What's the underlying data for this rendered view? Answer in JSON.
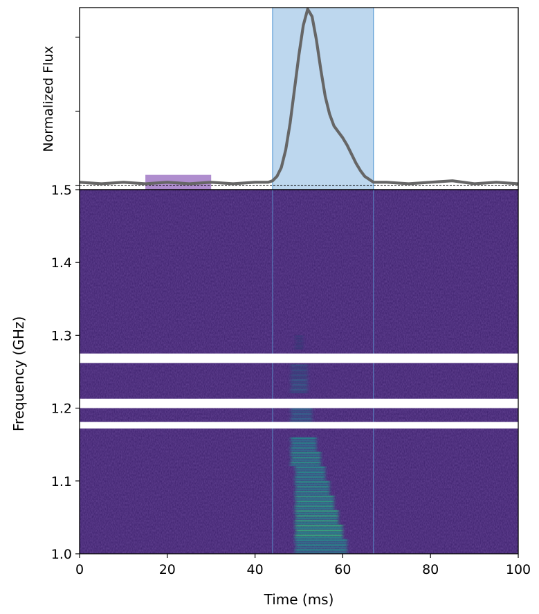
{
  "chart_data": [
    {
      "type": "line",
      "panel": "top",
      "ylabel": "Normalized Flux",
      "xlim": [
        0,
        100
      ],
      "ylim": [
        -0.03,
        1.2
      ],
      "yticks": [
        0,
        0.5,
        1.0
      ],
      "baseline": 0,
      "highlight_region": {
        "x": [
          44,
          67
        ],
        "color": "#5b9bd5"
      },
      "offpulse_region": {
        "x": [
          15,
          30
        ],
        "color": "#9467bd"
      },
      "series": [
        {
          "color": "#666666",
          "x": [
            0,
            5,
            10,
            15,
            20,
            25,
            30,
            35,
            40,
            43,
            44,
            45,
            46,
            47,
            48,
            49,
            50,
            51,
            52,
            53,
            54,
            55,
            56,
            57,
            58,
            59,
            60,
            61,
            62,
            63,
            64,
            65,
            66,
            67,
            70,
            75,
            80,
            85,
            90,
            95,
            100
          ],
          "y": [
            0.02,
            0.01,
            0.02,
            0.01,
            0.02,
            0.01,
            0.02,
            0.01,
            0.02,
            0.02,
            0.03,
            0.06,
            0.12,
            0.24,
            0.42,
            0.65,
            0.88,
            1.08,
            1.19,
            1.14,
            0.98,
            0.78,
            0.6,
            0.48,
            0.4,
            0.36,
            0.32,
            0.27,
            0.21,
            0.15,
            0.1,
            0.06,
            0.04,
            0.02,
            0.02,
            0.01,
            0.02,
            0.03,
            0.01,
            0.02,
            0.01
          ]
        }
      ]
    },
    {
      "type": "heatmap",
      "panel": "bottom",
      "xlabel": "Time (ms)",
      "ylabel": "Frequency (GHz)",
      "xlim": [
        0,
        100
      ],
      "ylim": [
        1.0,
        1.5
      ],
      "xticks": [
        0,
        20,
        40,
        60,
        80,
        100
      ],
      "xtick_labels": [
        "0",
        "20",
        "40",
        "60",
        "80",
        "100"
      ],
      "yticks": [
        1.0,
        1.1,
        1.2,
        1.3,
        1.4,
        1.5
      ],
      "ytick_labels": [
        "1.0",
        "1.1",
        "1.2",
        "1.3",
        "1.4",
        "1.5"
      ],
      "background_color": "#3b1f6b",
      "masked_bands_ghz": [
        [
          1.262,
          1.275
        ],
        [
          1.2,
          1.213
        ],
        [
          1.172,
          1.181
        ]
      ],
      "burst": {
        "time_center_ms": 52,
        "freq_range_ghz": [
          1.0,
          1.3
        ],
        "band_edges_ms": [
          44,
          67
        ],
        "intensity_profile": [
          {
            "freq": 1.01,
            "t0": 49,
            "t1": 61,
            "level": 0.55
          },
          {
            "freq": 1.03,
            "t0": 49,
            "t1": 60,
            "level": 0.75
          },
          {
            "freq": 1.05,
            "t0": 49,
            "t1": 59,
            "level": 0.7
          },
          {
            "freq": 1.07,
            "t0": 49,
            "t1": 58,
            "level": 0.65
          },
          {
            "freq": 1.09,
            "t0": 49,
            "t1": 57,
            "level": 0.6
          },
          {
            "freq": 1.11,
            "t0": 49,
            "t1": 56,
            "level": 0.55
          },
          {
            "freq": 1.13,
            "t0": 48,
            "t1": 55,
            "level": 0.6
          },
          {
            "freq": 1.15,
            "t0": 48,
            "t1": 54,
            "level": 0.5
          },
          {
            "freq": 1.19,
            "t0": 48,
            "t1": 53,
            "level": 0.3
          },
          {
            "freq": 1.23,
            "t0": 48,
            "t1": 52,
            "level": 0.25
          },
          {
            "freq": 1.25,
            "t0": 48,
            "t1": 52,
            "level": 0.2
          },
          {
            "freq": 1.29,
            "t0": 49,
            "t1": 51,
            "level": 0.12
          }
        ]
      }
    }
  ]
}
